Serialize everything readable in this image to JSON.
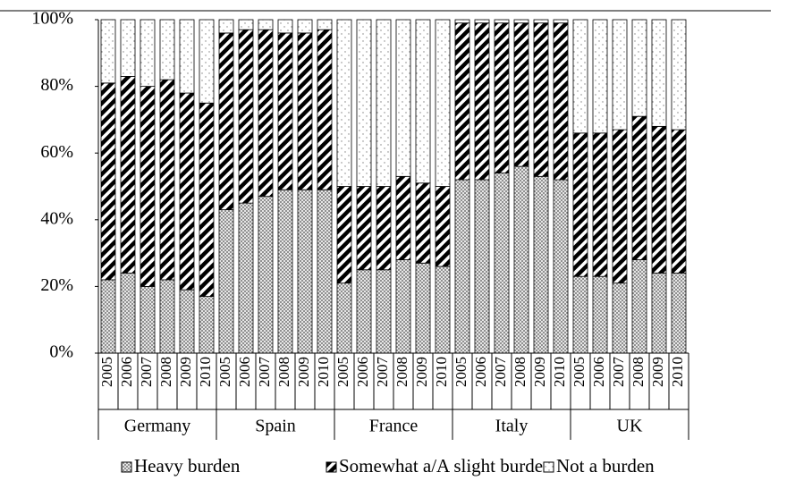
{
  "chart_data": {
    "type": "stacked_bar",
    "groups": [
      "Germany",
      "Spain",
      "France",
      "Italy",
      "UK"
    ],
    "categories": [
      "2005",
      "2006",
      "2007",
      "2008",
      "2009",
      "2010",
      "2005",
      "2006",
      "2007",
      "2008",
      "2009",
      "2010",
      "2005",
      "2006",
      "2007",
      "2008",
      "2009",
      "2010",
      "2005",
      "2006",
      "2007",
      "2008",
      "2009",
      "2010",
      "2005",
      "2006",
      "2007",
      "2008",
      "2009",
      "2010"
    ],
    "series": [
      {
        "name": "Heavy burden",
        "color": "#7f7f7f",
        "pattern": "crosshatch",
        "values": [
          22,
          24,
          20,
          22,
          19,
          17,
          43,
          45,
          47,
          49,
          49,
          49,
          21,
          25,
          25,
          28,
          27,
          26,
          52,
          52,
          54,
          56,
          53,
          52,
          23,
          23,
          21,
          28,
          24,
          24
        ]
      },
      {
        "name": "Somewhat a/A slight burden",
        "color": "#000000",
        "pattern": "stripes",
        "values": [
          59,
          59,
          60,
          60,
          59,
          58,
          53,
          52,
          50,
          47,
          47,
          48,
          29,
          25,
          25,
          25,
          24,
          24,
          47,
          47,
          45,
          43,
          46,
          47,
          43,
          43,
          46,
          43,
          44,
          43
        ]
      },
      {
        "name": "Not a burden",
        "color": "#7f7f7f",
        "pattern": "dots",
        "values": [
          19,
          17,
          20,
          18,
          22,
          25,
          4,
          3,
          3,
          4,
          4,
          3,
          50,
          50,
          50,
          47,
          49,
          50,
          1,
          1,
          1,
          1,
          1,
          1,
          34,
          34,
          33,
          29,
          32,
          33
        ]
      }
    ],
    "ylim": [
      0,
      100
    ],
    "yticks": [
      {
        "value": 0,
        "label": "0%"
      },
      {
        "value": 20,
        "label": "20%"
      },
      {
        "value": 40,
        "label": "40%"
      },
      {
        "value": 60,
        "label": "60%"
      },
      {
        "value": 80,
        "label": "80%"
      },
      {
        "value": 100,
        "label": "100%"
      }
    ],
    "legend": "bottom"
  }
}
